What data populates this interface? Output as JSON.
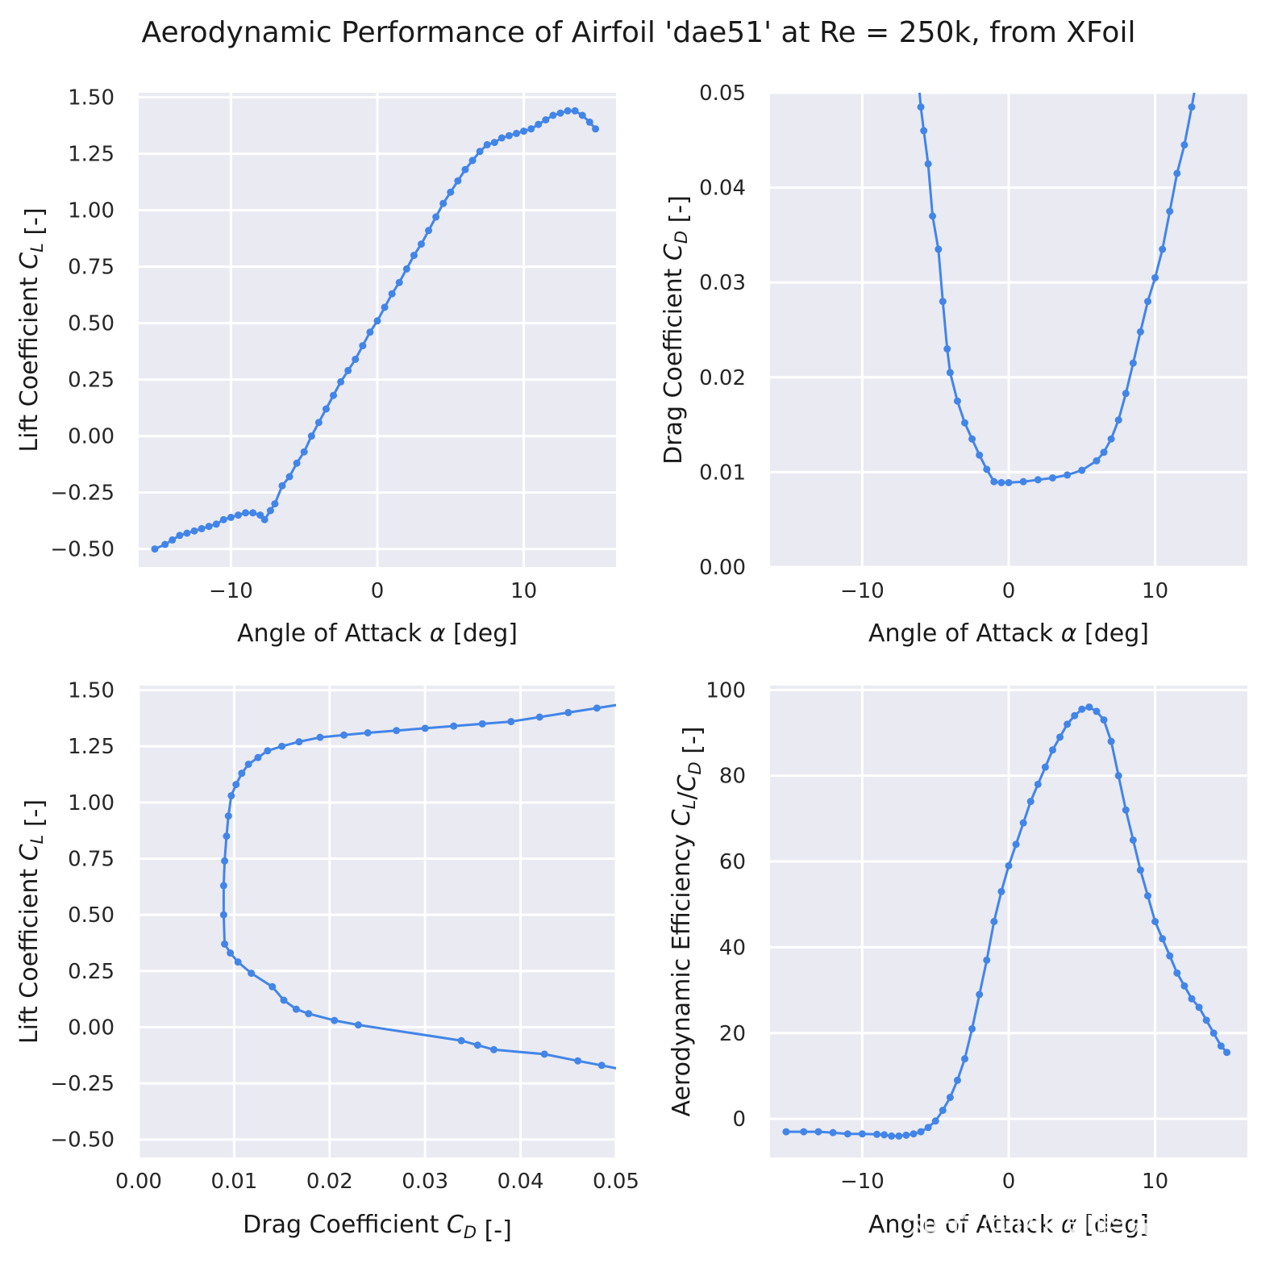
{
  "title": "Aerodynamic Performance of Airfoil 'dae51' at Re = 250k, from XFoil",
  "watermark": "知乎 @MiTei鹤見亭",
  "colors": {
    "series": "#4285e8",
    "panel_bg": "#eaeaf2",
    "grid": "#ffffff"
  },
  "chart_data": [
    {
      "type": "line",
      "xlabel": "Angle of Attack α [deg]",
      "ylabel": "Lift Coefficient C_L [-]",
      "xlim": [
        -16.3,
        16.3
      ],
      "ylim": [
        -0.58,
        1.52
      ],
      "xticks": [
        -10,
        0,
        10
      ],
      "xticklabels": [
        "−10",
        "0",
        "10"
      ],
      "yticks": [
        -0.5,
        -0.25,
        0,
        0.25,
        0.5,
        0.75,
        1.0,
        1.25,
        1.5
      ],
      "yticklabels": [
        "−0.50",
        "−0.25",
        "0.00",
        "0.25",
        "0.50",
        "0.75",
        "1.00",
        "1.25",
        "1.50"
      ],
      "grid": true,
      "x": [
        -15.2,
        -14.5,
        -14,
        -13.5,
        -13,
        -12.5,
        -12,
        -11.5,
        -11,
        -10.5,
        -10,
        -9.5,
        -9,
        -8.5,
        -8,
        -7.7,
        -7.3,
        -7,
        -6.5,
        -6,
        -5.5,
        -5,
        -4.5,
        -4,
        -3.5,
        -3,
        -2.5,
        -2,
        -1.5,
        -1,
        -0.5,
        0,
        0.5,
        1,
        1.5,
        2,
        2.5,
        3,
        3.5,
        4,
        4.5,
        5,
        5.5,
        6,
        6.5,
        7,
        7.5,
        8,
        8.5,
        9,
        9.5,
        10,
        10.5,
        11,
        11.5,
        12,
        12.5,
        13,
        13.5,
        14,
        14.5,
        14.9
      ],
      "y": [
        -0.5,
        -0.48,
        -0.46,
        -0.44,
        -0.43,
        -0.42,
        -0.41,
        -0.4,
        -0.39,
        -0.37,
        -0.36,
        -0.35,
        -0.34,
        -0.34,
        -0.35,
        -0.37,
        -0.33,
        -0.3,
        -0.22,
        -0.18,
        -0.12,
        -0.07,
        0.0,
        0.06,
        0.12,
        0.18,
        0.24,
        0.29,
        0.34,
        0.4,
        0.46,
        0.51,
        0.57,
        0.63,
        0.68,
        0.74,
        0.8,
        0.85,
        0.91,
        0.97,
        1.03,
        1.08,
        1.13,
        1.18,
        1.22,
        1.26,
        1.29,
        1.3,
        1.32,
        1.33,
        1.34,
        1.35,
        1.36,
        1.38,
        1.4,
        1.42,
        1.43,
        1.44,
        1.44,
        1.42,
        1.39,
        1.36
      ]
    },
    {
      "type": "line",
      "xlabel": "Angle of Attack α [deg]",
      "ylabel": "Drag Coefficient C_D [-]",
      "xlim": [
        -16.3,
        16.3
      ],
      "ylim": [
        0,
        0.05
      ],
      "xticks": [
        -10,
        0,
        10
      ],
      "xticklabels": [
        "−10",
        "0",
        "10"
      ],
      "yticks": [
        0,
        0.01,
        0.02,
        0.03,
        0.04,
        0.05
      ],
      "yticklabels": [
        "0.00",
        "0.01",
        "0.02",
        "0.03",
        "0.04",
        "0.05"
      ],
      "grid": true,
      "x": [
        -6.2,
        -6,
        -5.8,
        -5.5,
        -5.2,
        -4.8,
        -4.5,
        -4.2,
        -4,
        -3.5,
        -3,
        -2.5,
        -2,
        -1.5,
        -1,
        -0.5,
        0,
        1,
        2,
        3,
        4,
        5,
        6,
        6.5,
        7,
        7.5,
        8,
        8.5,
        9,
        9.5,
        10,
        10.5,
        11,
        11.5,
        12,
        12.5,
        12.9
      ],
      "y": [
        0.052,
        0.0485,
        0.046,
        0.0425,
        0.037,
        0.0335,
        0.028,
        0.023,
        0.0205,
        0.0175,
        0.0152,
        0.0135,
        0.0118,
        0.0103,
        0.009,
        0.0089,
        0.0089,
        0.009,
        0.0092,
        0.0094,
        0.0097,
        0.0102,
        0.0112,
        0.0121,
        0.0135,
        0.0155,
        0.0183,
        0.0215,
        0.0248,
        0.028,
        0.0305,
        0.0335,
        0.0375,
        0.0415,
        0.0445,
        0.0485,
        0.052
      ]
    },
    {
      "type": "line",
      "xlabel": "Drag Coefficient C_D [-]",
      "ylabel": "Lift Coefficient C_L [-]",
      "xlim": [
        0,
        0.05
      ],
      "ylim": [
        -0.58,
        1.52
      ],
      "xticks": [
        0,
        0.01,
        0.02,
        0.03,
        0.04,
        0.05
      ],
      "xticklabels": [
        "0.00",
        "0.01",
        "0.02",
        "0.03",
        "0.04",
        "0.05"
      ],
      "yticks": [
        -0.5,
        -0.25,
        0,
        0.25,
        0.5,
        0.75,
        1.0,
        1.25,
        1.5
      ],
      "yticklabels": [
        "−0.50",
        "−0.25",
        "0.00",
        "0.25",
        "0.50",
        "0.75",
        "1.00",
        "1.25",
        "1.50"
      ],
      "grid": true,
      "x": [
        0.052,
        0.0485,
        0.046,
        0.0425,
        0.0372,
        0.0355,
        0.0338,
        0.023,
        0.0205,
        0.0178,
        0.0165,
        0.0152,
        0.014,
        0.0118,
        0.0104,
        0.0096,
        0.009,
        0.0089,
        0.0089,
        0.009,
        0.0092,
        0.0094,
        0.0097,
        0.0102,
        0.0108,
        0.0115,
        0.0125,
        0.0135,
        0.015,
        0.0168,
        0.019,
        0.0215,
        0.024,
        0.027,
        0.03,
        0.033,
        0.036,
        0.039,
        0.042,
        0.045,
        0.048,
        0.051
      ],
      "y": [
        -0.2,
        -0.17,
        -0.15,
        -0.12,
        -0.1,
        -0.08,
        -0.06,
        0.01,
        0.03,
        0.06,
        0.08,
        0.12,
        0.18,
        0.24,
        0.29,
        0.33,
        0.37,
        0.5,
        0.63,
        0.74,
        0.85,
        0.94,
        1.03,
        1.08,
        1.13,
        1.17,
        1.2,
        1.23,
        1.25,
        1.27,
        1.29,
        1.3,
        1.31,
        1.32,
        1.33,
        1.34,
        1.35,
        1.36,
        1.38,
        1.4,
        1.42,
        1.44
      ]
    },
    {
      "type": "line",
      "xlabel": "Angle of Attack α [deg]",
      "ylabel": "Aerodynamic Efficiency C_L/C_D [-]",
      "xlim": [
        -16.3,
        16.3
      ],
      "ylim": [
        -9,
        101
      ],
      "xticks": [
        -10,
        0,
        10
      ],
      "xticklabels": [
        "−10",
        "0",
        "10"
      ],
      "yticks": [
        0,
        20,
        40,
        60,
        80,
        100
      ],
      "yticklabels": [
        "0",
        "20",
        "40",
        "60",
        "80",
        "100"
      ],
      "grid": true,
      "x": [
        -15.2,
        -14,
        -13,
        -12,
        -11,
        -10,
        -9,
        -8.5,
        -8,
        -7.5,
        -7,
        -6.5,
        -6,
        -5.5,
        -5,
        -4.5,
        -4,
        -3.5,
        -3,
        -2.5,
        -2,
        -1.5,
        -1,
        -0.5,
        0,
        0.5,
        1,
        1.5,
        2,
        2.5,
        3,
        3.5,
        4,
        4.5,
        5,
        5.5,
        6,
        6.5,
        7,
        7.5,
        8,
        8.5,
        9,
        9.5,
        10,
        10.5,
        11,
        11.5,
        12,
        12.5,
        13,
        13.5,
        14,
        14.5,
        14.9
      ],
      "y": [
        -3,
        -3,
        -3,
        -3.2,
        -3.5,
        -3.5,
        -3.6,
        -3.7,
        -4,
        -4,
        -3.8,
        -3.5,
        -3,
        -2,
        -0.5,
        2,
        5,
        9,
        14,
        21,
        29,
        37,
        46,
        53,
        59,
        64,
        69,
        74,
        78,
        82,
        86,
        89,
        92,
        94,
        95.5,
        96,
        95,
        93,
        88,
        80,
        72,
        65,
        58,
        52,
        46,
        42,
        38,
        34,
        31,
        28,
        26,
        23,
        20,
        17,
        15.5
      ]
    }
  ]
}
